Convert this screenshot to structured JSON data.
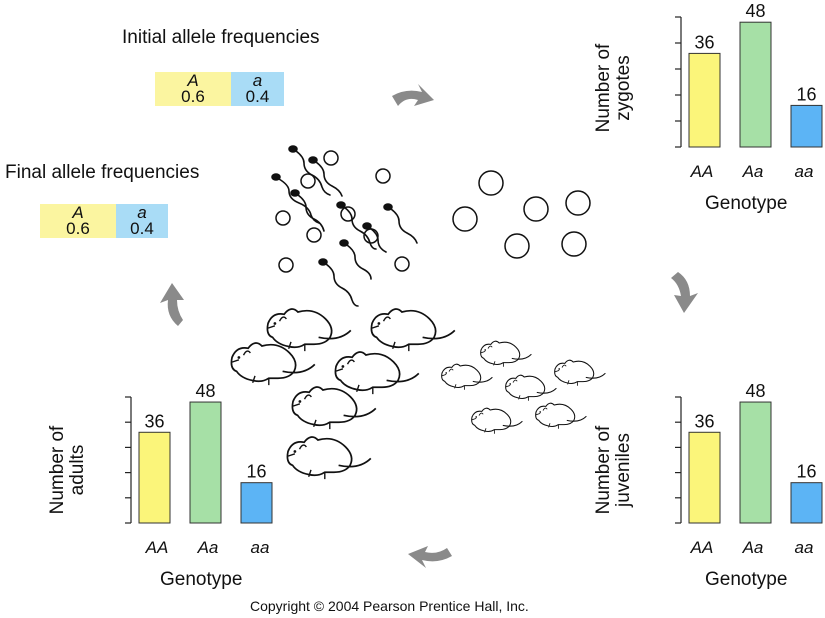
{
  "initial": {
    "title": "Initial allele frequencies",
    "alleles": [
      {
        "allele": "A",
        "value": "0.6",
        "color": "#fbf5a0"
      },
      {
        "allele": "a",
        "value": "0.4",
        "color": "#a9dcf6"
      }
    ]
  },
  "final": {
    "title": "Final allele frequencies",
    "alleles": [
      {
        "allele": "A",
        "value": "0.6",
        "color": "#fbf5a0"
      },
      {
        "allele": "a",
        "value": "0.4",
        "color": "#a9dcf6"
      }
    ]
  },
  "chart_data": [
    {
      "type": "bar",
      "id": "zygotes",
      "ylabel": "Number of zygotes",
      "xlabel": "Genotype",
      "categories": [
        "AA",
        "Aa",
        "aa"
      ],
      "values": [
        36,
        48,
        16
      ],
      "colors": [
        "#fbf57a",
        "#a6e0a6",
        "#5cb4f5"
      ],
      "ylim": [
        0,
        50
      ]
    },
    {
      "type": "bar",
      "id": "juveniles",
      "ylabel": "Number of juveniles",
      "xlabel": "Genotype",
      "categories": [
        "AA",
        "Aa",
        "aa"
      ],
      "values": [
        36,
        48,
        16
      ],
      "colors": [
        "#fbf57a",
        "#a6e0a6",
        "#5cb4f5"
      ],
      "ylim": [
        0,
        50
      ]
    },
    {
      "type": "bar",
      "id": "adults",
      "ylabel": "Number of adults",
      "xlabel": "Genotype",
      "categories": [
        "AA",
        "Aa",
        "aa"
      ],
      "values": [
        36,
        48,
        16
      ],
      "colors": [
        "#fbf57a",
        "#a6e0a6",
        "#5cb4f5"
      ],
      "ylim": [
        0,
        50
      ]
    }
  ],
  "labels": {
    "zygotes_y1": "Number of",
    "zygotes_y2": "zygotes",
    "juveniles_y1": "Number of",
    "juveniles_y2": "juveniles",
    "adults_y1": "Number of",
    "adults_y2": "adults",
    "genotype": "Genotype"
  },
  "copyright": "Copyright © 2004 Pearson Prentice Hall, Inc.",
  "arrow_color": "#8a8a8a"
}
